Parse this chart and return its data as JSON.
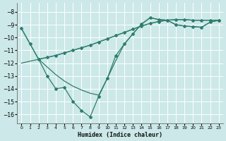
{
  "xlabel": "Humidex (Indice chaleur)",
  "bg_color": "#cce8e8",
  "grid_color": "#ffffff",
  "line_color": "#2e7d6e",
  "xlim": [
    -0.5,
    23.5
  ],
  "ylim": [
    -16.7,
    -7.3
  ],
  "xticks": [
    0,
    1,
    2,
    3,
    4,
    5,
    6,
    7,
    8,
    9,
    10,
    11,
    12,
    13,
    14,
    15,
    16,
    17,
    18,
    19,
    20,
    21,
    22,
    23
  ],
  "yticks": [
    -16,
    -15,
    -14,
    -13,
    -12,
    -11,
    -10,
    -9,
    -8
  ],
  "lines": [
    {
      "x": [
        0,
        1,
        2,
        3,
        4,
        5,
        6,
        7,
        8,
        9,
        10,
        11,
        12,
        13,
        14,
        15,
        16,
        17,
        18,
        19,
        20,
        21,
        22,
        23
      ],
      "y": [
        -9.3,
        -10.5,
        -11.7,
        -13.0,
        -14.0,
        -13.9,
        -15.0,
        -15.7,
        -16.2,
        -14.6,
        -13.2,
        -11.4,
        -10.5,
        -9.7,
        -8.95,
        -8.45,
        -8.6,
        -8.65,
        -9.0,
        -9.1,
        -9.15,
        -9.2,
        -8.8,
        -8.65
      ],
      "has_markers": true
    },
    {
      "x": [
        0,
        1,
        2,
        3,
        4,
        5,
        6,
        7,
        8,
        9,
        10,
        11,
        12,
        13,
        14,
        15,
        16,
        17,
        18,
        19,
        20,
        21,
        22,
        23
      ],
      "y": [
        -12.0,
        -11.85,
        -11.7,
        -11.55,
        -11.4,
        -11.2,
        -11.0,
        -10.8,
        -10.6,
        -10.35,
        -10.1,
        -9.85,
        -9.6,
        -9.35,
        -9.1,
        -8.9,
        -8.75,
        -8.65,
        -8.6,
        -8.6,
        -8.65,
        -8.65,
        -8.65,
        -8.65
      ],
      "has_markers": false
    },
    {
      "x": [
        0,
        2,
        3,
        4,
        5,
        6,
        7,
        8,
        9,
        10,
        11,
        12,
        13,
        14,
        15,
        16,
        17,
        18,
        19,
        20,
        21,
        22,
        23
      ],
      "y": [
        -9.3,
        -11.7,
        -12.3,
        -12.9,
        -13.4,
        -13.8,
        -14.1,
        -14.35,
        -14.5,
        -13.2,
        -11.8,
        -10.5,
        -9.7,
        -8.95,
        -8.45,
        -8.6,
        -8.65,
        -9.0,
        -9.1,
        -9.15,
        -9.2,
        -8.8,
        -8.65
      ],
      "has_markers": false
    },
    {
      "x": [
        2,
        3,
        4,
        5,
        6,
        7,
        8,
        9,
        10,
        11,
        12,
        13,
        14,
        15,
        16,
        17,
        18,
        19,
        20,
        21,
        22,
        23
      ],
      "y": [
        -11.7,
        -11.55,
        -11.4,
        -11.2,
        -11.0,
        -10.8,
        -10.6,
        -10.35,
        -10.1,
        -9.85,
        -9.6,
        -9.35,
        -9.1,
        -8.9,
        -8.75,
        -8.65,
        -8.6,
        -8.6,
        -8.65,
        -8.65,
        -8.65,
        -8.65
      ],
      "has_markers": true
    }
  ]
}
